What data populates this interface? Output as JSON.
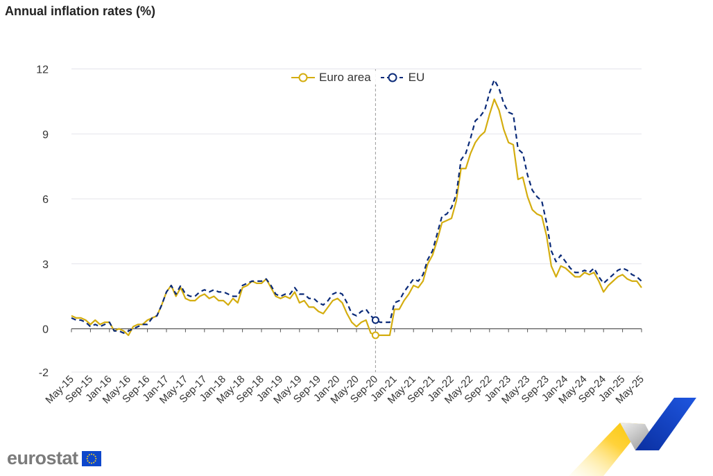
{
  "header": {
    "title": "Annual inflation rates (%)"
  },
  "legend": {
    "euro_area": "Euro area",
    "eu": "EU"
  },
  "brand": {
    "logo_text": "eurostat"
  },
  "colors": {
    "euro_area": "#d4ad0f",
    "eu": "#0a2a78",
    "grid": "#e3e3ea",
    "axis": "#555555"
  },
  "chart_data": {
    "type": "line",
    "title": "Annual inflation rates (%)",
    "xlabel": "",
    "ylabel": "",
    "ylim": [
      -2,
      12
    ],
    "y_ticks": [
      -2,
      0,
      3,
      6,
      9,
      12
    ],
    "grid": true,
    "legend_position": "top-center",
    "x_tick_labels": [
      "May-15",
      "Sep-15",
      "Jan-16",
      "May-16",
      "Sep-16",
      "Jan-17",
      "May-17",
      "Sep-17",
      "Jan-18",
      "May-18",
      "Sep-18",
      "Jan-19",
      "May-19",
      "Sep-19",
      "Jan-20",
      "May-20",
      "Sep-20",
      "Jan-21",
      "May-21",
      "Sep-21",
      "Jan-22",
      "May-22",
      "Sep-22",
      "Jan-23",
      "May-23",
      "Sep-23",
      "Jan-24",
      "May-24",
      "Sep-24",
      "Jan-25",
      "May-25"
    ],
    "highlight": {
      "x": "Sep-20",
      "series": [
        "Euro area",
        "EU"
      ]
    },
    "x": [
      "May-15",
      "Jun-15",
      "Jul-15",
      "Aug-15",
      "Sep-15",
      "Oct-15",
      "Nov-15",
      "Dec-15",
      "Jan-16",
      "Feb-16",
      "Mar-16",
      "Apr-16",
      "May-16",
      "Jun-16",
      "Jul-16",
      "Aug-16",
      "Sep-16",
      "Oct-16",
      "Nov-16",
      "Dec-16",
      "Jan-17",
      "Feb-17",
      "Mar-17",
      "Apr-17",
      "May-17",
      "Jun-17",
      "Jul-17",
      "Aug-17",
      "Sep-17",
      "Oct-17",
      "Nov-17",
      "Dec-17",
      "Jan-18",
      "Feb-18",
      "Mar-18",
      "Apr-18",
      "May-18",
      "Jun-18",
      "Jul-18",
      "Aug-18",
      "Sep-18",
      "Oct-18",
      "Nov-18",
      "Dec-18",
      "Jan-19",
      "Feb-19",
      "Mar-19",
      "Apr-19",
      "May-19",
      "Jun-19",
      "Jul-19",
      "Aug-19",
      "Sep-19",
      "Oct-19",
      "Nov-19",
      "Dec-19",
      "Jan-20",
      "Feb-20",
      "Mar-20",
      "Apr-20",
      "May-20",
      "Jun-20",
      "Jul-20",
      "Aug-20",
      "Sep-20",
      "Oct-20",
      "Nov-20",
      "Dec-20",
      "Jan-21",
      "Feb-21",
      "Mar-21",
      "Apr-21",
      "May-21",
      "Jun-21",
      "Jul-21",
      "Aug-21",
      "Sep-21",
      "Oct-21",
      "Nov-21",
      "Dec-21",
      "Jan-22",
      "Feb-22",
      "Mar-22",
      "Apr-22",
      "May-22",
      "Jun-22",
      "Jul-22",
      "Aug-22",
      "Sep-22",
      "Oct-22",
      "Nov-22",
      "Dec-22",
      "Jan-23",
      "Feb-23",
      "Mar-23",
      "Apr-23",
      "May-23",
      "Jun-23",
      "Jul-23",
      "Aug-23",
      "Sep-23",
      "Oct-23",
      "Nov-23",
      "Dec-23",
      "Jan-24",
      "Feb-24",
      "Mar-24",
      "Apr-24",
      "May-24",
      "Jun-24",
      "Jul-24",
      "Aug-24",
      "Sep-24",
      "Oct-24",
      "Nov-24",
      "Dec-24",
      "Jan-25",
      "Feb-25",
      "Mar-25",
      "Apr-25",
      "May-25"
    ],
    "series": [
      {
        "name": "Euro area",
        "values": [
          0.6,
          0.5,
          0.5,
          0.4,
          0.2,
          0.4,
          0.2,
          0.3,
          0.3,
          -0.1,
          0.0,
          -0.1,
          -0.3,
          0.1,
          0.2,
          0.2,
          0.4,
          0.5,
          0.6,
          1.1,
          1.7,
          2.0,
          1.5,
          1.9,
          1.4,
          1.3,
          1.3,
          1.5,
          1.6,
          1.4,
          1.5,
          1.3,
          1.3,
          1.1,
          1.4,
          1.2,
          1.9,
          2.0,
          2.2,
          2.1,
          2.1,
          2.3,
          1.9,
          1.5,
          1.4,
          1.5,
          1.4,
          1.7,
          1.2,
          1.3,
          1.0,
          1.0,
          0.8,
          0.7,
          1.0,
          1.3,
          1.4,
          1.2,
          0.7,
          0.3,
          0.1,
          0.3,
          0.4,
          -0.2,
          -0.3,
          -0.3,
          -0.3,
          -0.3,
          0.9,
          0.9,
          1.3,
          1.6,
          2.0,
          1.9,
          2.2,
          3.0,
          3.4,
          4.1,
          4.9,
          5.0,
          5.1,
          5.9,
          7.4,
          7.4,
          8.1,
          8.6,
          8.9,
          9.1,
          9.9,
          10.6,
          10.1,
          9.2,
          8.6,
          8.5,
          6.9,
          7.0,
          6.1,
          5.5,
          5.3,
          5.2,
          4.3,
          2.9,
          2.4,
          2.9,
          2.8,
          2.6,
          2.4,
          2.4,
          2.6,
          2.5,
          2.6,
          2.2,
          1.7,
          2.0,
          2.2,
          2.4,
          2.5,
          2.3,
          2.2,
          2.2,
          1.9
        ]
      },
      {
        "name": "EU",
        "values": [
          0.5,
          0.4,
          0.4,
          0.3,
          0.1,
          0.2,
          0.1,
          0.2,
          0.3,
          -0.1,
          -0.1,
          -0.2,
          -0.1,
          0.0,
          0.1,
          0.2,
          0.2,
          0.5,
          0.6,
          1.1,
          1.7,
          2.0,
          1.6,
          2.0,
          1.6,
          1.5,
          1.5,
          1.7,
          1.8,
          1.7,
          1.8,
          1.7,
          1.7,
          1.6,
          1.5,
          1.5,
          2.0,
          2.1,
          2.2,
          2.2,
          2.2,
          2.3,
          2.0,
          1.6,
          1.5,
          1.6,
          1.6,
          1.9,
          1.6,
          1.6,
          1.4,
          1.4,
          1.2,
          1.1,
          1.3,
          1.6,
          1.7,
          1.6,
          1.2,
          0.7,
          0.6,
          0.8,
          0.9,
          0.6,
          0.4,
          0.3,
          0.3,
          0.3,
          1.2,
          1.3,
          1.7,
          2.0,
          2.3,
          2.2,
          2.5,
          3.2,
          3.6,
          4.4,
          5.2,
          5.3,
          5.6,
          6.2,
          7.8,
          8.1,
          8.8,
          9.6,
          9.8,
          10.1,
          10.9,
          11.5,
          11.1,
          10.4,
          10.0,
          9.9,
          8.3,
          8.1,
          7.1,
          6.4,
          6.1,
          5.9,
          4.9,
          3.6,
          3.1,
          3.4,
          3.1,
          2.8,
          2.6,
          2.6,
          2.7,
          2.6,
          2.8,
          2.4,
          2.1,
          2.3,
          2.5,
          2.7,
          2.8,
          2.7,
          2.5,
          2.4,
          2.2
        ]
      }
    ]
  }
}
